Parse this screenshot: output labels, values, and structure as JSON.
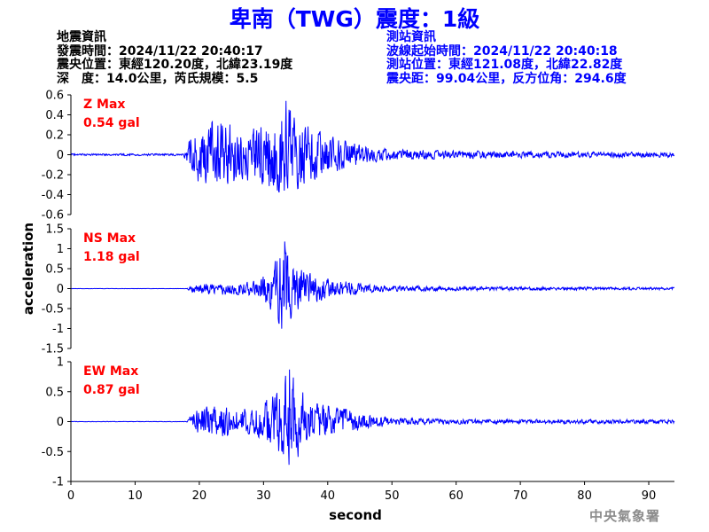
{
  "title": "卑南（TWG）震度：1級",
  "earthquake_info": {
    "heading": "地震資訊",
    "origin_time": "發震時間：2024/11/22 20:40:17",
    "epicenter": "震央位置：東經120.20度，北緯23.19度",
    "depth_magnitude": "深　度：14.0公里，芮氏規模：5.5"
  },
  "station_info": {
    "heading": "測站資訊",
    "wave_start": "波線起始時間：2024/11/22 20:40:18",
    "location": "測站位置：東經121.08度，北緯22.82度",
    "distance_azimuth": "震央距：99.04公里，反方位角：294.6度"
  },
  "agency": "中央氣象署",
  "chart_data": {
    "type": "line",
    "xlabel": "second",
    "ylabel": "acceleration",
    "xlim": [
      0,
      94
    ],
    "x_ticks": [
      0,
      10,
      20,
      30,
      40,
      50,
      60,
      70,
      80,
      90
    ],
    "x_tick_labels": [
      "0",
      "10",
      "20",
      "30",
      "40",
      "50",
      "60",
      "70",
      "80",
      "90"
    ],
    "series_color": "#0000ff",
    "label_color": "#ff0000",
    "panels": [
      {
        "component": "Z",
        "max_label": "Z Max",
        "max_value": "0.54 gal",
        "ylim": [
          -0.6,
          0.6
        ],
        "y_ticks": [
          0.6,
          0.4,
          0.2,
          0,
          -0.2,
          -0.4,
          -0.6
        ],
        "y_tick_labels": [
          "0.6",
          "0.4",
          "0.2",
          "0",
          "-0.2",
          "-0.4",
          "-0.6"
        ],
        "peak": 0.54,
        "noise": 0.01,
        "envelope": [
          [
            0,
            0.01
          ],
          [
            17.5,
            0.01
          ],
          [
            18.5,
            0.15
          ],
          [
            20,
            0.3
          ],
          [
            22,
            0.33
          ],
          [
            25,
            0.3
          ],
          [
            28,
            0.25
          ],
          [
            30,
            0.3
          ],
          [
            32,
            0.4
          ],
          [
            33.5,
            0.52
          ],
          [
            35,
            0.35
          ],
          [
            38,
            0.25
          ],
          [
            42,
            0.15
          ],
          [
            46,
            0.08
          ],
          [
            52,
            0.05
          ],
          [
            60,
            0.04
          ],
          [
            75,
            0.03
          ],
          [
            94,
            0.025
          ]
        ],
        "seed": 7
      },
      {
        "component": "NS",
        "max_label": "NS Max",
        "max_value": "1.18 gal",
        "ylim": [
          -1.5,
          1.5
        ],
        "y_ticks": [
          1.5,
          1,
          0.5,
          0,
          -0.5,
          -1,
          -1.5
        ],
        "y_tick_labels": [
          "1.5",
          "1",
          "0.5",
          "0",
          "-0.5",
          "-1",
          "-1.5"
        ],
        "peak": 1.18,
        "noise": 0.004,
        "envelope": [
          [
            0,
            0.004
          ],
          [
            18,
            0.004
          ],
          [
            19,
            0.1
          ],
          [
            22,
            0.15
          ],
          [
            26,
            0.15
          ],
          [
            29,
            0.2
          ],
          [
            31,
            0.5
          ],
          [
            32.5,
            0.9
          ],
          [
            33.3,
            1.15
          ],
          [
            34,
            0.8
          ],
          [
            36,
            0.45
          ],
          [
            40,
            0.25
          ],
          [
            45,
            0.12
          ],
          [
            50,
            0.07
          ],
          [
            60,
            0.05
          ],
          [
            94,
            0.03
          ]
        ],
        "seed": 13
      },
      {
        "component": "EW",
        "max_label": "EW Max",
        "max_value": "0.87 gal",
        "ylim": [
          -1,
          1
        ],
        "y_ticks": [
          1,
          0.5,
          0,
          -0.5,
          -1
        ],
        "y_tick_labels": [
          "1",
          "0.5",
          "0",
          "-0.5",
          "-1"
        ],
        "peak": 0.87,
        "noise": 0.004,
        "envelope": [
          [
            0,
            0.004
          ],
          [
            18,
            0.004
          ],
          [
            19,
            0.15
          ],
          [
            21,
            0.25
          ],
          [
            24,
            0.25
          ],
          [
            28,
            0.2
          ],
          [
            30,
            0.3
          ],
          [
            32,
            0.55
          ],
          [
            34,
            0.85
          ],
          [
            36,
            0.5
          ],
          [
            38,
            0.3
          ],
          [
            41,
            0.25
          ],
          [
            45,
            0.15
          ],
          [
            50,
            0.06
          ],
          [
            60,
            0.04
          ],
          [
            94,
            0.03
          ]
        ],
        "seed": 21
      }
    ]
  }
}
